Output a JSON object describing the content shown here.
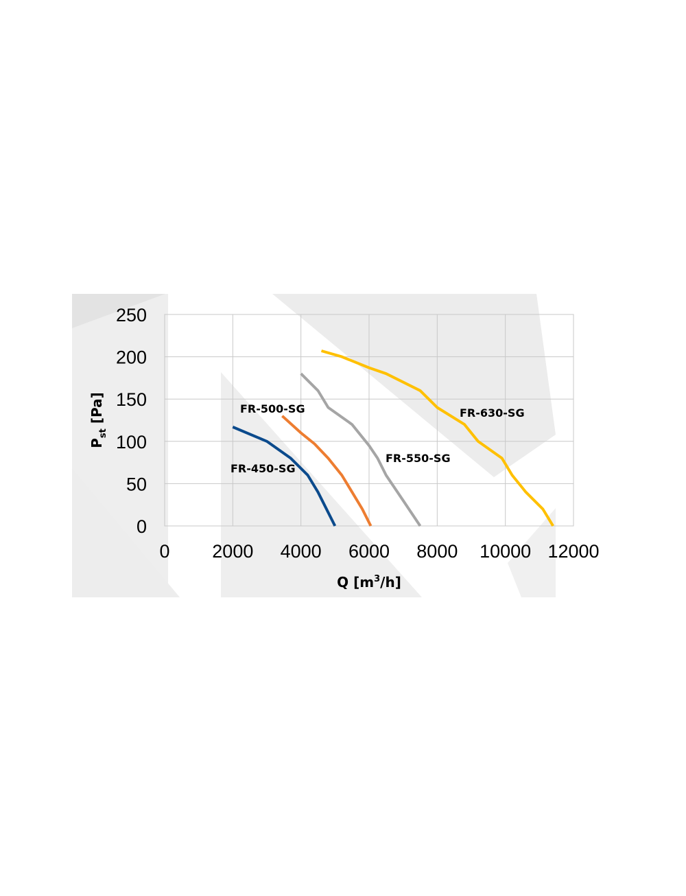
{
  "chart_data": {
    "type": "line",
    "xlabel": {
      "main": "Q [m",
      "sup": "3",
      "tail": "/h]"
    },
    "ylabel": {
      "main": "P",
      "sub": "st",
      "tail": " [Pa]"
    },
    "xlim": [
      0,
      12000
    ],
    "ylim": [
      0,
      250
    ],
    "x_ticks": [
      "0",
      "2000",
      "4000",
      "6000",
      "8000",
      "10000",
      "12000"
    ],
    "y_ticks": [
      "0",
      "50",
      "100",
      "150",
      "200",
      "250"
    ],
    "grid": true,
    "legend": "none",
    "series": [
      {
        "name": "FR-450-SG",
        "color": "#0b4a8c",
        "x": [
          2000,
          3000,
          3700,
          4200,
          4500,
          5000
        ],
        "y": [
          117,
          100,
          80,
          60,
          40,
          0
        ]
      },
      {
        "name": "FR-500-SG",
        "color": "#ed7d31",
        "x": [
          3450,
          4000,
          4400,
          4800,
          5200,
          5500,
          5800,
          6050
        ],
        "y": [
          130,
          110,
          97,
          80,
          60,
          40,
          20,
          0
        ]
      },
      {
        "name": "FR-550-SG",
        "color": "#a5a5a5",
        "x": [
          4000,
          4500,
          4800,
          5500,
          6000,
          6250,
          6500,
          7000,
          7500
        ],
        "y": [
          180,
          160,
          140,
          120,
          95,
          80,
          60,
          30,
          0
        ]
      },
      {
        "name": "FR-630-SG",
        "color": "#ffc000",
        "x": [
          4600,
          5200,
          6000,
          6500,
          7500,
          8000,
          8800,
          9200,
          9900,
          10200,
          10600,
          11100,
          11400
        ],
        "y": [
          207,
          200,
          187,
          180,
          160,
          140,
          120,
          100,
          80,
          60,
          40,
          20,
          0
        ]
      }
    ]
  }
}
